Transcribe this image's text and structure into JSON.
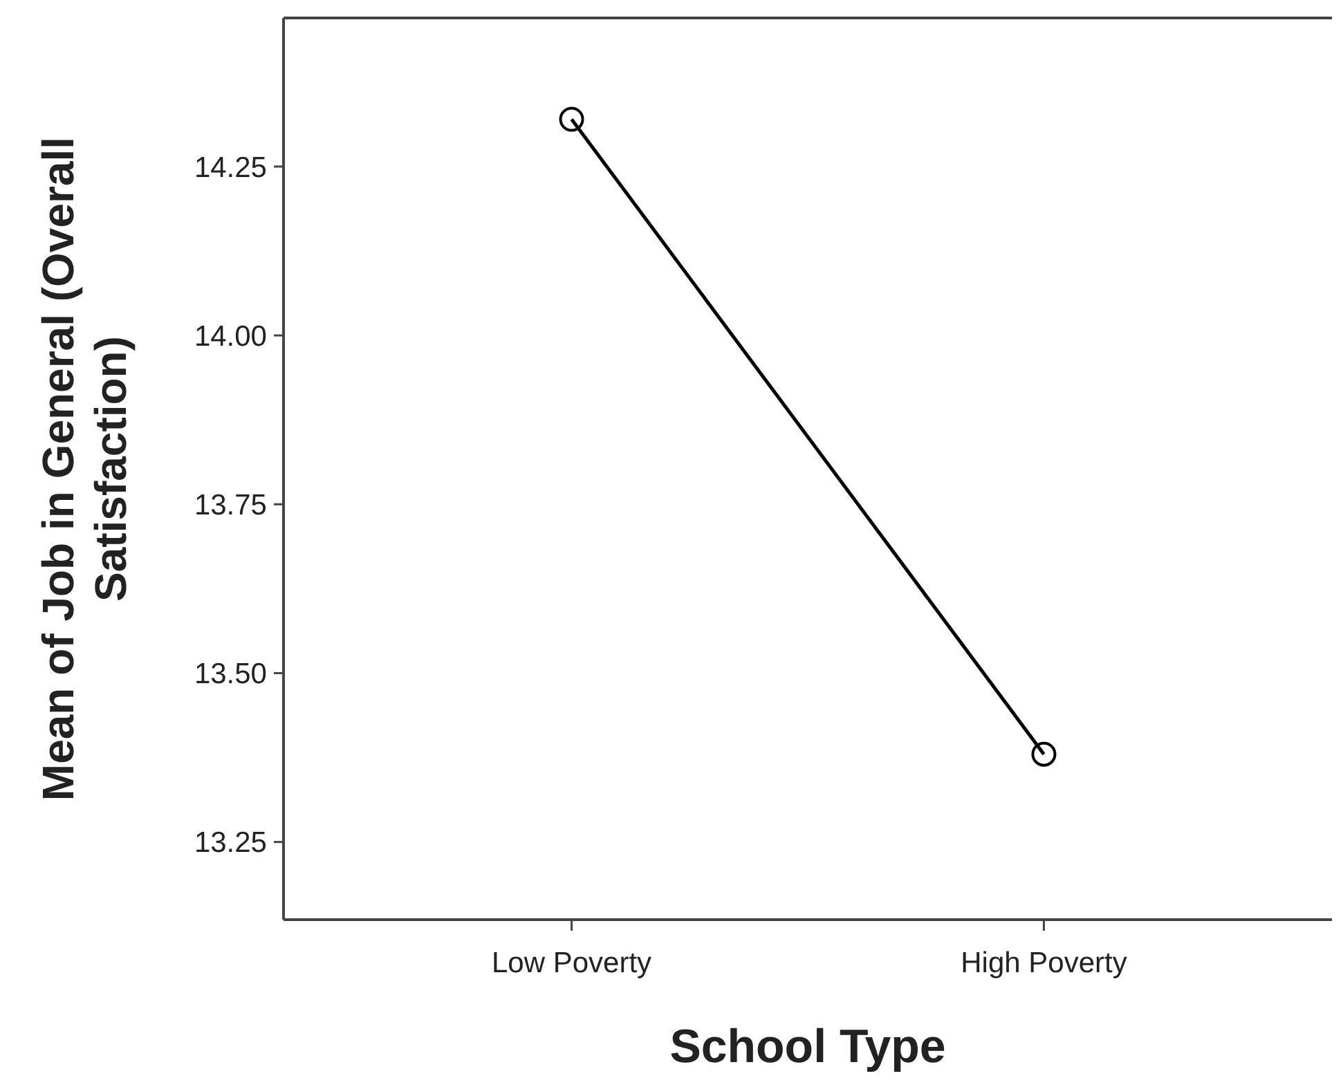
{
  "chart_data": {
    "type": "line",
    "xlabel": "School Type",
    "ylabel": "Mean of Job in General (Overall Satisfaction)",
    "categories": [
      "Low Poverty",
      "High Poverty"
    ],
    "series": [
      {
        "color": "#000000",
        "values": [
          14.32,
          13.38
        ]
      }
    ],
    "ylim": [
      13.135,
      14.47
    ],
    "yticks": [
      {
        "value": 13.25,
        "label": "13.25"
      },
      {
        "value": 13.5,
        "label": "13.50"
      },
      {
        "value": 13.75,
        "label": "13.75"
      },
      {
        "value": 14,
        "label": "14.00"
      },
      {
        "value": 14.25,
        "label": "14.25"
      }
    ],
    "grid": false,
    "marker": "circle",
    "line_style": "solid"
  }
}
